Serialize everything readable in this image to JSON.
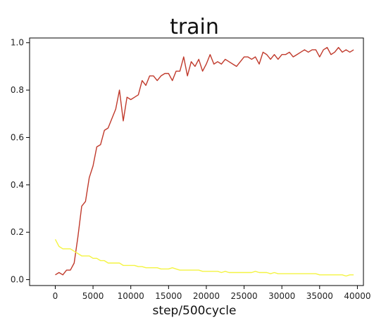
{
  "chart_data": {
    "type": "line",
    "title": "train",
    "xlabel": "step/500cycle",
    "ylabel": "",
    "xlim": [
      -3400,
      40800
    ],
    "ylim": [
      -0.025,
      1.02
    ],
    "xticks": [
      0,
      5000,
      10000,
      15000,
      20000,
      25000,
      30000,
      35000,
      40000
    ],
    "xtick_labels": [
      "0",
      "5000",
      "10000",
      "15000",
      "20000",
      "25000",
      "30000",
      "35000",
      "40000"
    ],
    "yticks": [
      0.0,
      0.2,
      0.4,
      0.6,
      0.8,
      1.0
    ],
    "ytick_labels": [
      "0.0",
      "0.2",
      "0.4",
      "0.6",
      "0.8",
      "1.0"
    ],
    "grid": false,
    "series": [
      {
        "color": "#c0392b",
        "x": [
          0,
          500,
          1000,
          1500,
          2000,
          2500,
          3000,
          3500,
          4000,
          4500,
          5000,
          5500,
          6000,
          6500,
          7000,
          7500,
          8000,
          8500,
          9000,
          9500,
          10000,
          10500,
          11000,
          11500,
          12000,
          12500,
          13000,
          13500,
          14000,
          14500,
          15000,
          15500,
          16000,
          16500,
          17000,
          17500,
          18000,
          18500,
          19000,
          19500,
          20000,
          20500,
          21000,
          21500,
          22000,
          22500,
          23000,
          23500,
          24000,
          24500,
          25000,
          25500,
          26000,
          26500,
          27000,
          27500,
          28000,
          28500,
          29000,
          29500,
          30000,
          30500,
          31000,
          31500,
          32000,
          32500,
          33000,
          33500,
          34000,
          34500,
          35000,
          35500,
          36000,
          36500,
          37000,
          37500,
          38000,
          38500,
          39000,
          39500
        ],
        "y": [
          0.02,
          0.03,
          0.02,
          0.04,
          0.04,
          0.07,
          0.18,
          0.31,
          0.33,
          0.43,
          0.48,
          0.56,
          0.57,
          0.63,
          0.64,
          0.68,
          0.72,
          0.8,
          0.67,
          0.77,
          0.76,
          0.77,
          0.78,
          0.84,
          0.82,
          0.86,
          0.86,
          0.84,
          0.86,
          0.87,
          0.87,
          0.84,
          0.88,
          0.88,
          0.94,
          0.86,
          0.92,
          0.9,
          0.93,
          0.88,
          0.91,
          0.95,
          0.91,
          0.92,
          0.91,
          0.93,
          0.92,
          0.91,
          0.9,
          0.92,
          0.94,
          0.94,
          0.93,
          0.94,
          0.91,
          0.96,
          0.95,
          0.93,
          0.95,
          0.93,
          0.95,
          0.95,
          0.96,
          0.94,
          0.95,
          0.96,
          0.97,
          0.96,
          0.97,
          0.97,
          0.94,
          0.97,
          0.98,
          0.95,
          0.96,
          0.98,
          0.96,
          0.97,
          0.96,
          0.97
        ]
      },
      {
        "color": "#f4f442",
        "x": [
          0,
          500,
          1000,
          1500,
          2000,
          2500,
          3000,
          3500,
          4000,
          4500,
          5000,
          5500,
          6000,
          6500,
          7000,
          7500,
          8000,
          8500,
          9000,
          9500,
          10000,
          10500,
          11000,
          11500,
          12000,
          12500,
          13000,
          13500,
          14000,
          14500,
          15000,
          15500,
          16000,
          16500,
          17000,
          17500,
          18000,
          18500,
          19000,
          19500,
          20000,
          20500,
          21000,
          21500,
          22000,
          22500,
          23000,
          23500,
          24000,
          24500,
          25000,
          25500,
          26000,
          26500,
          27000,
          27500,
          28000,
          28500,
          29000,
          29500,
          30000,
          30500,
          31000,
          31500,
          32000,
          32500,
          33000,
          33500,
          34000,
          34500,
          35000,
          35500,
          36000,
          36500,
          37000,
          37500,
          38000,
          38500,
          39000,
          39500
        ],
        "y": [
          0.17,
          0.14,
          0.13,
          0.13,
          0.13,
          0.12,
          0.11,
          0.1,
          0.1,
          0.1,
          0.09,
          0.09,
          0.08,
          0.08,
          0.07,
          0.07,
          0.07,
          0.07,
          0.06,
          0.06,
          0.06,
          0.06,
          0.055,
          0.055,
          0.05,
          0.05,
          0.05,
          0.05,
          0.045,
          0.045,
          0.045,
          0.05,
          0.045,
          0.04,
          0.04,
          0.04,
          0.04,
          0.04,
          0.04,
          0.035,
          0.035,
          0.035,
          0.035,
          0.035,
          0.03,
          0.035,
          0.03,
          0.03,
          0.03,
          0.03,
          0.03,
          0.03,
          0.03,
          0.035,
          0.03,
          0.03,
          0.03,
          0.025,
          0.03,
          0.025,
          0.025,
          0.025,
          0.025,
          0.025,
          0.025,
          0.025,
          0.025,
          0.025,
          0.025,
          0.025,
          0.02,
          0.02,
          0.02,
          0.02,
          0.02,
          0.02,
          0.02,
          0.015,
          0.02,
          0.02
        ]
      }
    ]
  }
}
